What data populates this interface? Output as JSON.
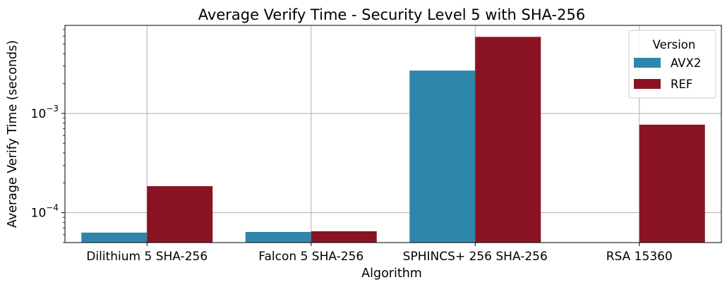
{
  "chart_data": {
    "type": "bar",
    "title": "Average Verify Time - Security Level 5 with SHA-256",
    "xlabel": "Algorithm",
    "ylabel": "Average Verify Time (seconds)",
    "yscale": "log",
    "ylim": [
      5e-05,
      0.0077
    ],
    "yticks": [
      {
        "value": 0.0001,
        "base": "10",
        "exp": "−4"
      },
      {
        "value": 0.001,
        "base": "10",
        "exp": "−3"
      }
    ],
    "categories": [
      "Dilithium 5 SHA-256",
      "Falcon 5 SHA-256",
      "SPHINCS+ 256 SHA-256",
      "RSA 15360"
    ],
    "series": [
      {
        "name": "AVX2",
        "color": "#2e86ab",
        "values": [
          6.3e-05,
          6.4e-05,
          0.0027,
          null
        ]
      },
      {
        "name": "REF",
        "color": "#8a1323",
        "values": [
          0.000185,
          6.5e-05,
          0.0059,
          0.00077
        ]
      }
    ],
    "legend": {
      "title": "Version",
      "position": "top-right"
    },
    "grid": true
  }
}
